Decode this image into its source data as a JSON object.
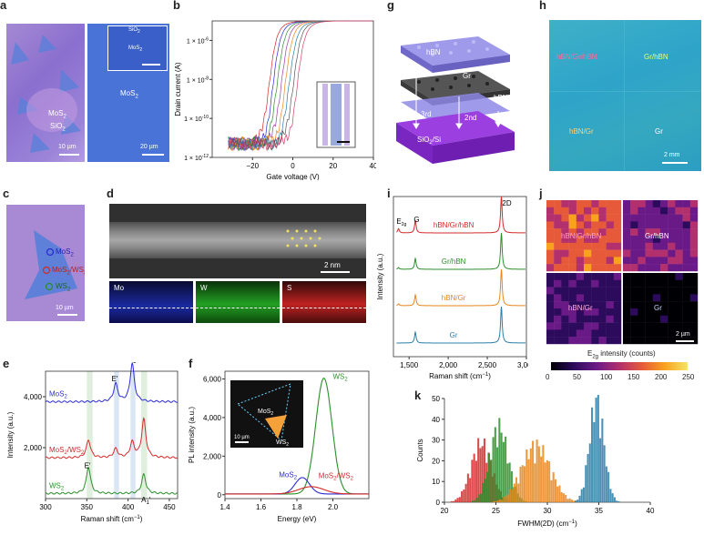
{
  "panel_labels": {
    "a": "a",
    "b": "b",
    "c": "c",
    "d": "d",
    "e": "e",
    "f": "f",
    "g": "g",
    "h": "h",
    "i": "i",
    "j": "j",
    "k": "k"
  },
  "panel_a": {
    "left_labels": [
      "MoS",
      "2",
      "SiO",
      "2"
    ],
    "left_scale": "10 µm",
    "right_inset": [
      "SiO",
      "2",
      "MoS",
      "2"
    ],
    "right_label_main": "MoS",
    "right_label_sub": "2",
    "right_scale": "20 µm"
  },
  "panel_c": {
    "labels": [
      {
        "main": "MoS",
        "sub": "2"
      },
      {
        "main": "MoS",
        "sub": "2",
        "tail": "/WS",
        "sub2": "2"
      },
      {
        "main": "WS",
        "sub": "2"
      }
    ],
    "scale": "10 µm"
  },
  "panel_d": {
    "scale": "2 nm",
    "maps": [
      "Mo",
      "W",
      "S"
    ]
  },
  "panel_g": {
    "layers": [
      "hBN",
      "Gr",
      "hBN",
      "SiO",
      "2",
      "/Si"
    ],
    "arrows": [
      "3rd",
      "2nd",
      "1st"
    ]
  },
  "panel_h": {
    "labels": [
      "hBN/Gr/hBN",
      "Gr/hBN",
      "hBN/Gr",
      "Gr"
    ],
    "scale": "2 mm"
  },
  "panel_j": {
    "labels": [
      "hBN/Gr/hBN",
      "Gr/hBN",
      "hBN/Gr",
      "Gr"
    ],
    "scale": "2 µm",
    "colorbar_label": "E",
    "colorbar_label_sub": "2g",
    "colorbar_label_tail": " intensity (counts)",
    "colorbar_ticks": [
      "0",
      "50",
      "100",
      "150",
      "200",
      "250"
    ]
  },
  "colors": {
    "blue": "#2b2bd6",
    "red": "#d42a2a",
    "green": "#2c8f2c",
    "orange": "#e8861c",
    "teal": "#2a7fa8",
    "pink": "#d6406a"
  },
  "chart_data": [
    {
      "id": "b",
      "type": "line",
      "xlabel": "Gate voltage (V)",
      "ylabel": "Drain current (A)",
      "xlim": [
        -40,
        40
      ],
      "yscale": "log",
      "ylim_exp": [
        -12,
        -5
      ],
      "x_ticks": [
        -20,
        0,
        20,
        40
      ],
      "y_ticks": [
        "1 × 10",
        "1 × 10",
        "1 × 10",
        "1 × 10"
      ],
      "y_tick_exp": [
        "-6",
        "-8",
        "-10",
        "-12"
      ],
      "y_tick_vals": [
        -6,
        -8,
        -10,
        -12
      ],
      "series_count": 8,
      "threshold_shifts": [
        -12,
        -10,
        -8,
        -6,
        -4,
        -2,
        0,
        2
      ],
      "colors": [
        "#d42a2a",
        "#2b2bd6",
        "#2c8f2c",
        "#9b3fa8",
        "#e8861c",
        "#2a7fa8",
        "#555555",
        "#d6406a"
      ]
    },
    {
      "id": "e",
      "type": "line",
      "xlabel": "Raman shift (cm",
      "xlabel_sup": "−1",
      "xlabel_tail": ")",
      "ylabel": "Intensity (a.u.)",
      "xlim": [
        300,
        460
      ],
      "ylim": [
        0,
        5000
      ],
      "x_ticks": [
        300,
        350,
        400,
        450
      ],
      "y_ticks": [
        2000,
        4000
      ],
      "y_tick_labels": [
        "2,000",
        "4,000"
      ],
      "series": [
        {
          "name": "MoS",
          "sub": "2",
          "offset": 3800,
          "peaks": [
            [
              385,
              700
            ],
            [
              405,
              1500
            ]
          ]
        },
        {
          "name": "MoS",
          "sub": "2",
          "tail": "/WS",
          "sub2": "2",
          "offset": 1600,
          "peaks": [
            [
              352,
              700
            ],
            [
              385,
              350
            ],
            [
              405,
              600
            ],
            [
              419,
              1500
            ]
          ]
        },
        {
          "name": "WS",
          "sub": "2",
          "offset": 200,
          "peaks": [
            [
              352,
              1050
            ],
            [
              419,
              750
            ]
          ]
        }
      ],
      "annotations": [
        "E′",
        "A",
        "1",
        "′",
        "E′",
        "A",
        "1",
        "′"
      ]
    },
    {
      "id": "f",
      "type": "line",
      "xlabel": "Energy (eV)",
      "ylabel": "PL intensity (a.u.)",
      "xlim": [
        1.4,
        2.2
      ],
      "ylim": [
        -200,
        6400
      ],
      "x_ticks": [
        1.4,
        1.6,
        1.8,
        2.0
      ],
      "x_tick_labels": [
        "1.4",
        "1.6",
        "1.8",
        "2.0"
      ],
      "y_ticks": [
        0,
        2000,
        4000,
        6000
      ],
      "y_tick_labels": [
        "0",
        "2,000",
        "4,000",
        "6,000"
      ],
      "series": [
        {
          "name": "WS",
          "sub": "2",
          "center": 1.95,
          "height": 6000,
          "width": 0.045
        },
        {
          "name": "MoS",
          "sub": "2",
          "center": 1.83,
          "height": 850,
          "width": 0.04
        },
        {
          "name": "MoS",
          "sub": "2",
          "tail": "/WS",
          "sub2": "2",
          "center": 1.88,
          "height": 380,
          "width": 0.07
        }
      ],
      "inset_labels": [
        "MoS",
        "2",
        "WS",
        "2",
        "10 µm"
      ]
    },
    {
      "id": "i",
      "type": "line",
      "xlabel": "Raman shift (cm",
      "xlabel_sup": "−1",
      "xlabel_tail": ")",
      "ylabel": "Intensity (a.u.)",
      "xlim": [
        1300,
        3000
      ],
      "x_ticks": [
        1500,
        2000,
        2500,
        3000
      ],
      "x_tick_labels": [
        "1,500",
        "2,000",
        "2,500",
        "3,000"
      ],
      "series": [
        {
          "name": "hBN/Gr/hBN",
          "offset": 3,
          "peaks": [
            [
              1365,
              0.12
            ],
            [
              1580,
              0.35
            ],
            [
              2680,
              1.0
            ]
          ]
        },
        {
          "name": "Gr/hBN",
          "offset": 2,
          "peaks": [
            [
              1365,
              0.05
            ],
            [
              1580,
              0.3
            ],
            [
              2680,
              1.0
            ]
          ]
        },
        {
          "name": "hBN/Gr",
          "offset": 1,
          "peaks": [
            [
              1365,
              0.05
            ],
            [
              1580,
              0.3
            ],
            [
              2680,
              1.0
            ]
          ]
        },
        {
          "name": "Gr",
          "offset": 0,
          "peaks": [
            [
              1580,
              0.3
            ],
            [
              2680,
              1.0
            ]
          ]
        }
      ],
      "annotations": [
        "E",
        "2g",
        "G",
        "2D"
      ]
    },
    {
      "id": "k",
      "type": "bar",
      "xlabel": "FWHM(2D) (cm",
      "xlabel_sup": "−1",
      "xlabel_tail": ")",
      "ylabel": "Counts",
      "xlim": [
        20,
        40
      ],
      "ylim": [
        0,
        50
      ],
      "x_ticks": [
        20,
        25,
        30,
        35,
        40
      ],
      "y_ticks": [
        0,
        10,
        20,
        30,
        40,
        50
      ],
      "series": [
        {
          "center": 23.5,
          "sd": 1.0,
          "peak": 26
        },
        {
          "center": 25.2,
          "sd": 0.9,
          "peak": 33
        },
        {
          "center": 28.8,
          "sd": 1.4,
          "peak": 25
        },
        {
          "center": 34.7,
          "sd": 0.7,
          "peak": 45
        }
      ]
    }
  ]
}
